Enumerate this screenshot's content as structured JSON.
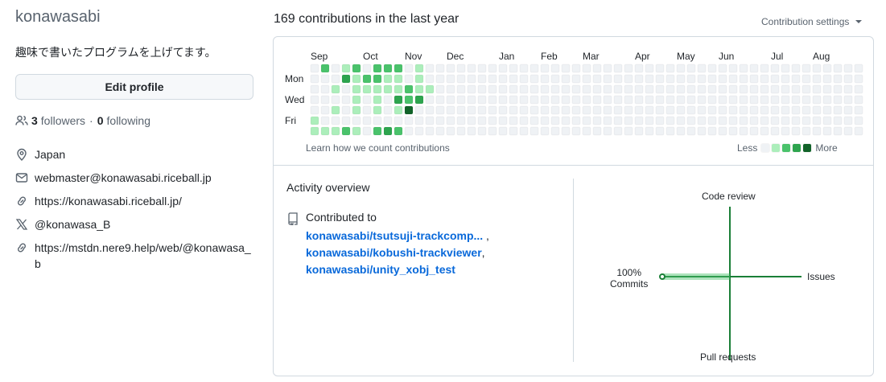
{
  "profile": {
    "username": "konawasabi",
    "bio": "趣味で書いたプログラムを上げてます。",
    "edit_button": "Edit profile",
    "followers_count": "3",
    "followers_label": "followers",
    "separator": "·",
    "following_count": "0",
    "following_label": "following",
    "details": [
      {
        "icon": "location-icon",
        "text": "Japan"
      },
      {
        "icon": "mail-icon",
        "text": "webmaster@konawasabi.riceball.jp"
      },
      {
        "icon": "link-icon",
        "text": "https://konawasabi.riceball.jp/"
      },
      {
        "icon": "x-logo-icon",
        "text": "@konawasa_B"
      },
      {
        "icon": "link-icon",
        "text": "https://mstdn.nere9.help/web/@konawasa_b"
      }
    ]
  },
  "contributions": {
    "heading": "169 contributions in the last year",
    "settings_label": "Contribution settings",
    "months": [
      {
        "label": "Sep",
        "week": 0
      },
      {
        "label": "Oct",
        "week": 5
      },
      {
        "label": "Nov",
        "week": 9
      },
      {
        "label": "Dec",
        "week": 13
      },
      {
        "label": "Jan",
        "week": 18
      },
      {
        "label": "Feb",
        "week": 22
      },
      {
        "label": "Mar",
        "week": 26
      },
      {
        "label": "Apr",
        "week": 31
      },
      {
        "label": "May",
        "week": 35
      },
      {
        "label": "Jun",
        "week": 39
      },
      {
        "label": "Jul",
        "week": 44
      },
      {
        "label": "Aug",
        "week": 48
      }
    ],
    "day_labels": [
      {
        "label": "Mon",
        "row": 1
      },
      {
        "label": "Wed",
        "row": 3
      },
      {
        "label": "Fri",
        "row": 5
      }
    ],
    "level_colors": [
      "#eff2f5",
      "#aceebb",
      "#4ac26b",
      "#2da44e",
      "#116329"
    ],
    "weeks": [
      [
        0,
        0,
        0,
        0,
        0,
        1,
        1
      ],
      [
        2,
        0,
        0,
        0,
        0,
        0,
        1
      ],
      [
        0,
        0,
        1,
        0,
        1,
        0,
        1
      ],
      [
        1,
        3,
        0,
        0,
        0,
        0,
        2
      ],
      [
        2,
        1,
        1,
        1,
        1,
        0,
        1
      ],
      [
        0,
        2,
        1,
        0,
        0,
        0,
        0
      ],
      [
        2,
        2,
        1,
        1,
        1,
        0,
        2
      ],
      [
        2,
        1,
        1,
        0,
        0,
        0,
        3
      ],
      [
        2,
        1,
        1,
        3,
        1,
        0,
        2
      ],
      [
        0,
        0,
        2,
        2,
        4,
        0,
        0
      ],
      [
        1,
        1,
        1,
        3,
        0,
        0,
        0
      ],
      [
        0,
        0,
        1,
        0,
        0,
        0,
        0
      ],
      [
        0,
        0,
        0,
        0,
        0,
        0,
        0
      ],
      [
        0,
        0,
        0,
        0,
        0,
        0,
        0
      ],
      [
        0,
        0,
        0,
        0,
        0,
        0,
        0
      ],
      [
        0,
        0,
        0,
        0,
        0,
        0,
        0
      ],
      [
        0,
        0,
        0,
        0,
        0,
        0,
        0
      ],
      [
        0,
        0,
        0,
        0,
        0,
        0,
        0
      ],
      [
        0,
        0,
        0,
        0,
        0,
        0,
        0
      ],
      [
        0,
        0,
        0,
        0,
        0,
        0,
        0
      ],
      [
        0,
        0,
        0,
        0,
        0,
        0,
        0
      ],
      [
        0,
        0,
        0,
        0,
        0,
        0,
        0
      ],
      [
        0,
        0,
        0,
        0,
        0,
        0,
        0
      ],
      [
        0,
        0,
        0,
        0,
        0,
        0,
        0
      ],
      [
        0,
        0,
        0,
        0,
        0,
        0,
        0
      ],
      [
        0,
        0,
        0,
        0,
        0,
        0,
        0
      ],
      [
        0,
        0,
        0,
        0,
        0,
        0,
        0
      ],
      [
        0,
        0,
        0,
        0,
        0,
        0,
        0
      ],
      [
        0,
        0,
        0,
        0,
        0,
        0,
        0
      ],
      [
        0,
        0,
        0,
        0,
        0,
        0,
        0
      ],
      [
        0,
        0,
        0,
        0,
        0,
        0,
        0
      ],
      [
        0,
        0,
        0,
        0,
        0,
        0,
        0
      ],
      [
        0,
        0,
        0,
        0,
        0,
        0,
        0
      ],
      [
        0,
        0,
        0,
        0,
        0,
        0,
        0
      ],
      [
        0,
        0,
        0,
        0,
        0,
        0,
        0
      ],
      [
        0,
        0,
        0,
        0,
        0,
        0,
        0
      ],
      [
        0,
        0,
        0,
        0,
        0,
        0,
        0
      ],
      [
        0,
        0,
        0,
        0,
        0,
        0,
        0
      ],
      [
        0,
        0,
        0,
        0,
        0,
        0,
        0
      ],
      [
        0,
        0,
        0,
        0,
        0,
        0,
        0
      ],
      [
        0,
        0,
        0,
        0,
        0,
        0,
        0
      ],
      [
        0,
        0,
        0,
        0,
        0,
        0,
        0
      ],
      [
        0,
        0,
        0,
        0,
        0,
        0,
        0
      ],
      [
        0,
        0,
        0,
        0,
        0,
        0,
        0
      ],
      [
        0,
        0,
        0,
        0,
        0,
        0,
        0
      ],
      [
        0,
        0,
        0,
        0,
        0,
        0,
        0
      ],
      [
        0,
        0,
        0,
        0,
        0,
        0,
        0
      ],
      [
        0,
        0,
        0,
        0,
        0,
        0,
        0
      ],
      [
        0,
        0,
        0,
        0,
        0,
        0,
        0
      ],
      [
        0,
        0,
        0,
        0,
        0,
        0,
        0
      ],
      [
        0,
        0,
        0,
        0,
        0,
        0,
        0
      ],
      [
        0,
        0,
        0,
        0,
        0,
        0,
        0
      ],
      [
        0,
        0,
        0,
        0,
        0,
        0,
        0
      ]
    ],
    "learn_link": "Learn how we count contributions",
    "legend_less": "Less",
    "legend_more": "More"
  },
  "activity": {
    "title": "Activity overview",
    "contributed_label": "Contributed to",
    "repos": [
      {
        "name": "konawasabi/tsutsuji-trackcomp...",
        "suffix": " ,"
      },
      {
        "name": "konawasabi/kobushi-trackviewer",
        "suffix": ","
      },
      {
        "name": "konawasabi/unity_xobj_test",
        "suffix": ""
      }
    ],
    "overview": {
      "code_review_label": "Code review",
      "issues_label": "Issues",
      "pull_requests_label": "Pull requests",
      "commits_percent": "100%",
      "commits_label": "Commits",
      "commits_fraction": 1.0,
      "axis_color": "#1a7f37",
      "fill_color": "#4ac26b"
    }
  }
}
